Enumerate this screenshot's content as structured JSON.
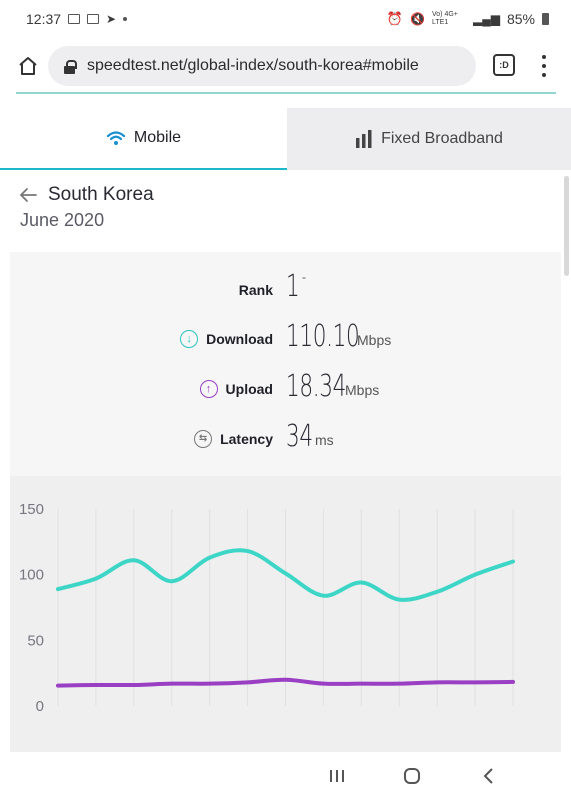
{
  "status_bar": {
    "time": "12:37",
    "network": "Vo) 4G+ LTE1",
    "battery": "85%"
  },
  "browser": {
    "url": "speedtest.net/global-index/south-korea#mobile",
    "tab_label": ":D"
  },
  "tabs": [
    {
      "label": "Mobile",
      "icon": "wifi-icon",
      "active": true
    },
    {
      "label": "Fixed Broadband",
      "icon": "bar-chart-icon",
      "active": false
    }
  ],
  "region": {
    "country": "South Korea",
    "period": "June 2020"
  },
  "stats": {
    "rank": {
      "label": "Rank",
      "value": "1",
      "change": "-"
    },
    "download": {
      "label": "Download",
      "value": "110.10",
      "unit": "Mbps",
      "color": "#29c5c1"
    },
    "upload": {
      "label": "Upload",
      "value": "18.34",
      "unit": "Mbps",
      "color": "#9a3fc4"
    },
    "latency": {
      "label": "Latency",
      "value": "34",
      "unit": "ms",
      "color": "#777777"
    }
  },
  "chart_data": {
    "type": "line",
    "ylim": [
      0,
      150
    ],
    "y_ticks": [
      "150",
      "100",
      "50",
      "0"
    ],
    "x": [
      1,
      2,
      3,
      4,
      5,
      6,
      7,
      8,
      9,
      10,
      11,
      12,
      13
    ],
    "grid": "vertical",
    "series": [
      {
        "values": [
          89,
          97,
          111,
          95,
          113,
          118,
          101,
          84,
          94,
          81,
          87,
          100,
          110
        ],
        "color": "#3dd6c6"
      },
      {
        "values": [
          15.5,
          16,
          16,
          17,
          17,
          18,
          20,
          17,
          17,
          17,
          18,
          18,
          18.34
        ],
        "color": "#9a3fc4"
      }
    ]
  }
}
